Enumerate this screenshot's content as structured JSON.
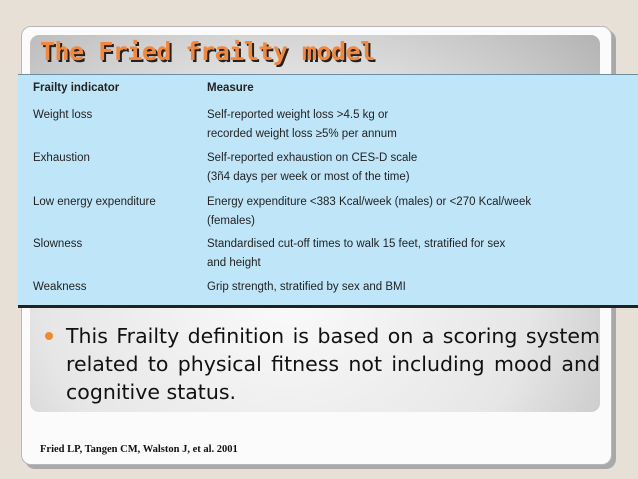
{
  "slide": {
    "title": "The Fried frailty model",
    "table": {
      "headers": [
        "Frailty indicator",
        "Measure"
      ],
      "rows": [
        {
          "indicator": "Weight loss",
          "measure": [
            "Self-reported weight loss >4.5 kg or",
            "recorded weight loss ≥5% per annum"
          ]
        },
        {
          "indicator": "Exhaustion",
          "measure": [
            "Self-reported exhaustion on CES-D scale",
            "(3ñ4 days per week or most of the time)"
          ]
        },
        {
          "indicator": "Low energy expenditure",
          "measure": [
            "Energy expenditure <383 Kcal/week (males) or <270 Kcal/week",
            "(females)"
          ]
        },
        {
          "indicator": "Slowness",
          "measure": [
            "Standardised cut-off times to walk 15 feet, stratified for sex",
            "and height"
          ]
        },
        {
          "indicator": "Weakness",
          "measure": [
            "Grip strength, stratified by sex and BMI"
          ]
        }
      ]
    },
    "bullet": "This Frailty definition is based on a scoring system related  to physical fitness not including mood and cognitive status.",
    "citation": "Fried LP, Tangen CM, Walston J, et al. 2001"
  },
  "colors": {
    "title": "#f4883a",
    "table_bg": "#bfe6f8",
    "bullet_dot": "#f08a2c",
    "background": "#e6e0d6"
  }
}
